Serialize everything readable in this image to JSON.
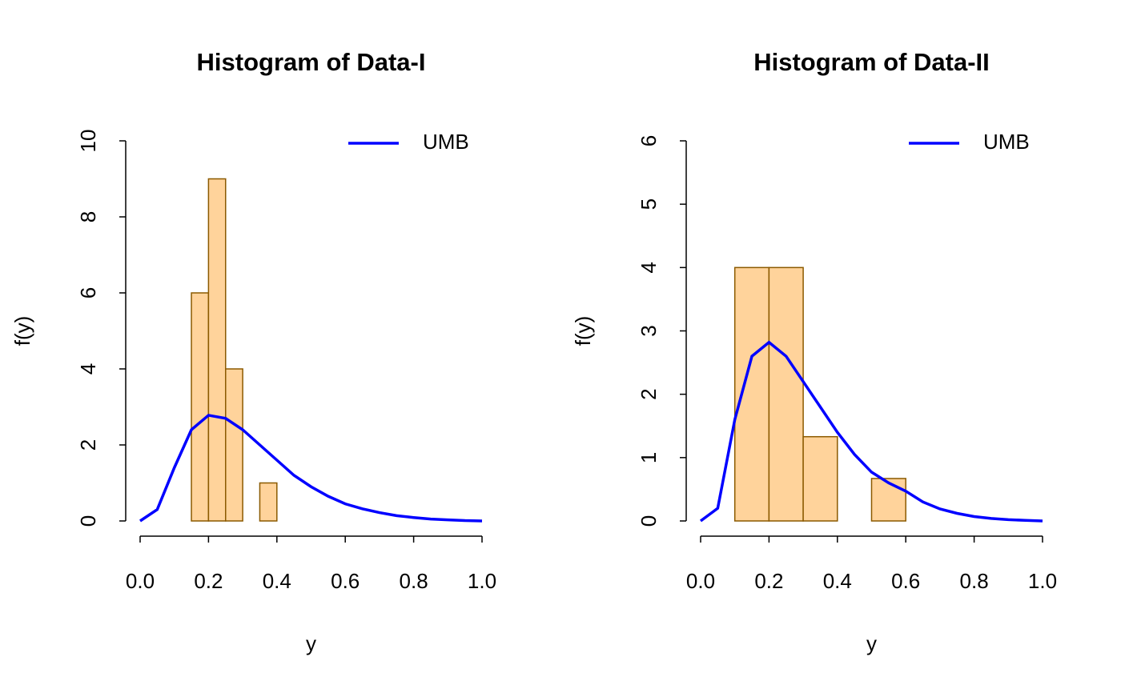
{
  "chart_data": [
    {
      "type": "histogram",
      "title": "Histogram of Data-I",
      "xlabel": "y",
      "ylabel": "f(y)",
      "bins": [
        0.15,
        0.2,
        0.25,
        0.3,
        0.35,
        0.4
      ],
      "values": [
        6,
        9,
        4,
        0,
        1
      ],
      "color": "#ffd39b",
      "edgecolor": "#8b5a00",
      "series": [
        {
          "name": "UMB",
          "color": "#0000ff",
          "x": [
            0,
            0.05,
            0.1,
            0.15,
            0.2,
            0.25,
            0.3,
            0.35,
            0.4,
            0.45,
            0.5,
            0.55,
            0.6,
            0.65,
            0.7,
            0.75,
            0.8,
            0.85,
            0.9,
            0.95,
            1
          ],
          "values": [
            0,
            0.3,
            1.4,
            2.4,
            2.78,
            2.7,
            2.4,
            2.0,
            1.6,
            1.2,
            0.9,
            0.65,
            0.45,
            0.32,
            0.22,
            0.14,
            0.09,
            0.05,
            0.03,
            0.01,
            0
          ]
        }
      ],
      "legend": "upper right",
      "xlim": [
        0,
        1
      ],
      "xticks": [
        {
          "value": 0,
          "label": "0.0"
        },
        0.2,
        0.4,
        0.6,
        0.8,
        {
          "value": 1,
          "label": "1.0"
        }
      ],
      "ylim": [
        0,
        10
      ],
      "yticks": [
        0,
        2,
        4,
        6,
        8,
        10
      ]
    },
    {
      "type": "histogram",
      "title": "Histogram of Data-II",
      "xlabel": "y",
      "ylabel": "f(y)",
      "bins": [
        0.1,
        0.2,
        0.3,
        0.4,
        0.5,
        0.6
      ],
      "values": [
        4,
        4,
        1.33,
        0,
        0.67
      ],
      "color": "#ffd39b",
      "edgecolor": "#8b5a00",
      "series": [
        {
          "name": "UMB",
          "color": "#0000ff",
          "x": [
            0,
            0.05,
            0.1,
            0.15,
            0.2,
            0.25,
            0.3,
            0.35,
            0.4,
            0.45,
            0.5,
            0.55,
            0.6,
            0.65,
            0.7,
            0.75,
            0.8,
            0.85,
            0.9,
            0.95,
            1
          ],
          "values": [
            0,
            0.2,
            1.6,
            2.6,
            2.82,
            2.6,
            2.2,
            1.8,
            1.4,
            1.05,
            0.77,
            0.6,
            0.47,
            0.3,
            0.19,
            0.12,
            0.07,
            0.04,
            0.02,
            0.01,
            0
          ]
        }
      ],
      "legend": "upper right",
      "xlim": [
        0,
        1
      ],
      "xticks": [
        {
          "value": 0,
          "label": "0.0"
        },
        0.2,
        0.4,
        0.6,
        0.8,
        {
          "value": 1,
          "label": "1.0"
        }
      ],
      "ylim": [
        0,
        6
      ],
      "yticks": [
        0,
        1,
        2,
        3,
        4,
        5,
        6
      ]
    }
  ]
}
